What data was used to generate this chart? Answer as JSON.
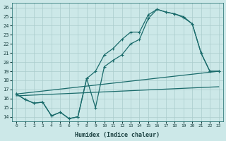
{
  "bg_color": "#cce8e8",
  "grid_color": "#aacccc",
  "line_color": "#1a6b6b",
  "xlabel": "Humidex (Indice chaleur)",
  "xlim": [
    -0.5,
    23.5
  ],
  "ylim": [
    13.5,
    26.5
  ],
  "xticks": [
    0,
    1,
    2,
    3,
    4,
    5,
    6,
    7,
    8,
    9,
    10,
    11,
    12,
    13,
    14,
    15,
    16,
    17,
    18,
    19,
    20,
    21,
    22,
    23
  ],
  "yticks": [
    14,
    15,
    16,
    17,
    18,
    19,
    20,
    21,
    22,
    23,
    24,
    25,
    26
  ],
  "line_lower_x": [
    0,
    1,
    2,
    3,
    4,
    5,
    6,
    7,
    8,
    9,
    10,
    11,
    12,
    13,
    14,
    15,
    16,
    17,
    18,
    19,
    20,
    21,
    22,
    23
  ],
  "line_lower_y": [
    16.5,
    15.9,
    15.5,
    15.6,
    14.1,
    14.5,
    13.8,
    14.0,
    18.2,
    15.0,
    19.5,
    20.2,
    20.8,
    22.0,
    22.5,
    24.8,
    25.8,
    25.5,
    25.3,
    24.9,
    24.2,
    21.0,
    19.0,
    19.0
  ],
  "line_upper_x": [
    0,
    1,
    2,
    3,
    4,
    5,
    6,
    7,
    8,
    9,
    10,
    11,
    12,
    13,
    14,
    15,
    16,
    17,
    18,
    19,
    20,
    21,
    22,
    23
  ],
  "line_upper_y": [
    16.5,
    15.9,
    15.5,
    15.6,
    14.1,
    14.5,
    13.8,
    14.0,
    18.2,
    19.0,
    20.8,
    21.5,
    22.5,
    23.3,
    23.3,
    25.2,
    25.8,
    25.5,
    25.3,
    25.0,
    24.2,
    21.0,
    19.0,
    19.0
  ],
  "trend_x": [
    0,
    23
  ],
  "trend_y": [
    16.5,
    19.0
  ],
  "trend2_x": [
    0,
    23
  ],
  "trend2_y": [
    16.3,
    17.3
  ]
}
